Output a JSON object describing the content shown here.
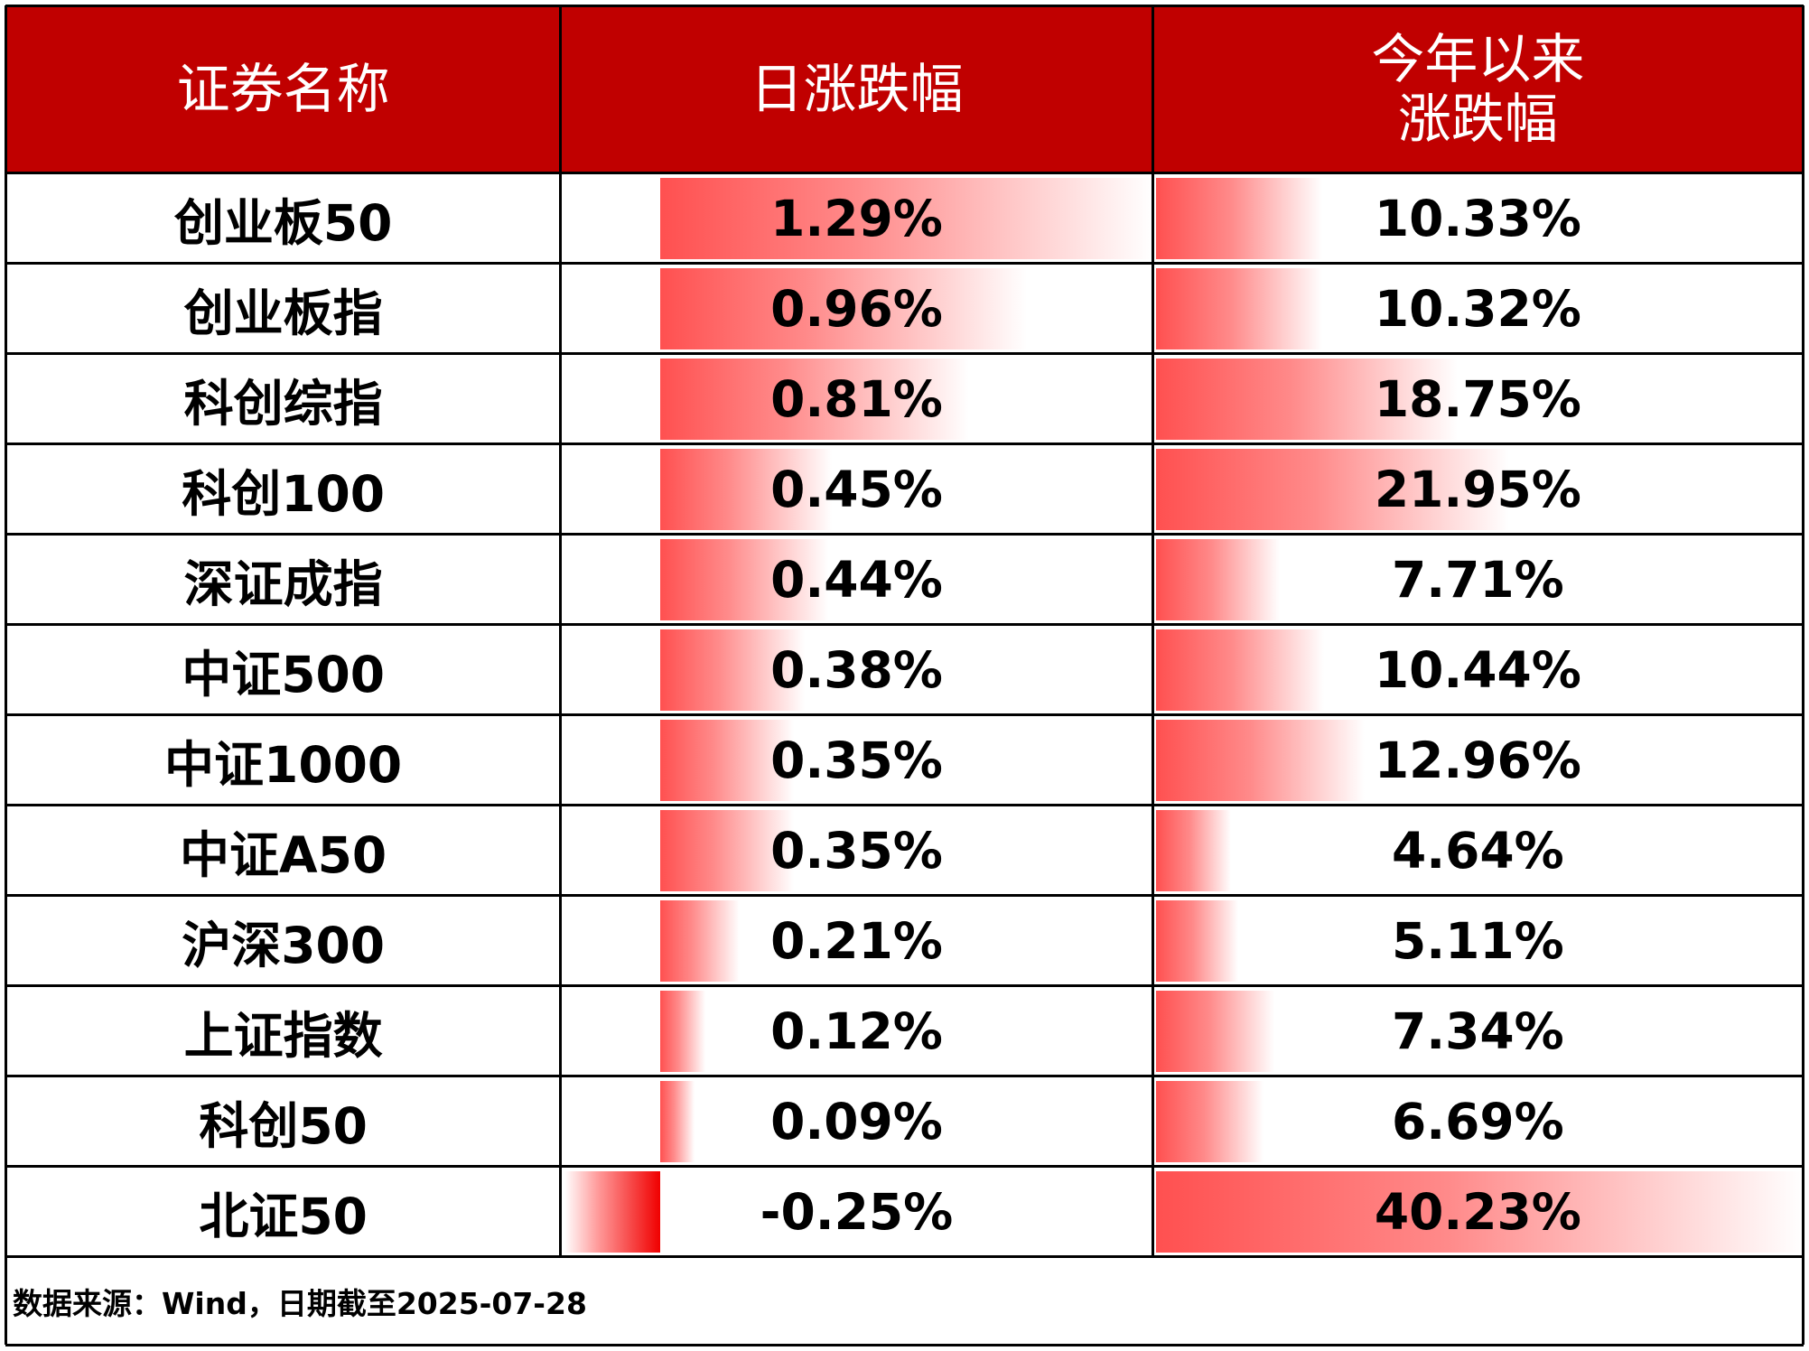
{
  "headers": {
    "name": "证券名称",
    "daily": "日涨跌幅",
    "ytd": "今年以来\n涨跌幅"
  },
  "colors": {
    "header_bg": "#c00000",
    "bar_positive": "#ff5050",
    "bar_negative": "#f00000"
  },
  "footer": "数据来源：Wind，日期截至2025-07-28",
  "chart_data": {
    "type": "table",
    "columns": [
      "证券名称",
      "日涨跌幅",
      "今年以来涨跌幅"
    ],
    "rows": [
      {
        "name": "创业板50",
        "daily": 1.29,
        "daily_label": "1.29%",
        "ytd": 10.33,
        "ytd_label": "10.33%"
      },
      {
        "name": "创业板指",
        "daily": 0.96,
        "daily_label": "0.96%",
        "ytd": 10.32,
        "ytd_label": "10.32%"
      },
      {
        "name": "科创综指",
        "daily": 0.81,
        "daily_label": "0.81%",
        "ytd": 18.75,
        "ytd_label": "18.75%"
      },
      {
        "name": "科创100",
        "daily": 0.45,
        "daily_label": "0.45%",
        "ytd": 21.95,
        "ytd_label": "21.95%"
      },
      {
        "name": "深证成指",
        "daily": 0.44,
        "daily_label": "0.44%",
        "ytd": 7.71,
        "ytd_label": "7.71%"
      },
      {
        "name": "中证500",
        "daily": 0.38,
        "daily_label": "0.38%",
        "ytd": 10.44,
        "ytd_label": "10.44%"
      },
      {
        "name": "中证1000",
        "daily": 0.35,
        "daily_label": "0.35%",
        "ytd": 12.96,
        "ytd_label": "12.96%"
      },
      {
        "name": "中证A50",
        "daily": 0.35,
        "daily_label": "0.35%",
        "ytd": 4.64,
        "ytd_label": "4.64%"
      },
      {
        "name": "沪深300",
        "daily": 0.21,
        "daily_label": "0.21%",
        "ytd": 5.11,
        "ytd_label": "5.11%"
      },
      {
        "name": "上证指数",
        "daily": 0.12,
        "daily_label": "0.12%",
        "ytd": 7.34,
        "ytd_label": "7.34%"
      },
      {
        "name": "科创50",
        "daily": 0.09,
        "daily_label": "0.09%",
        "ytd": 6.69,
        "ytd_label": "6.69%"
      },
      {
        "name": "北证50",
        "daily": -0.25,
        "daily_label": "-0.25%",
        "ytd": 40.23,
        "ytd_label": "40.23%"
      }
    ]
  }
}
